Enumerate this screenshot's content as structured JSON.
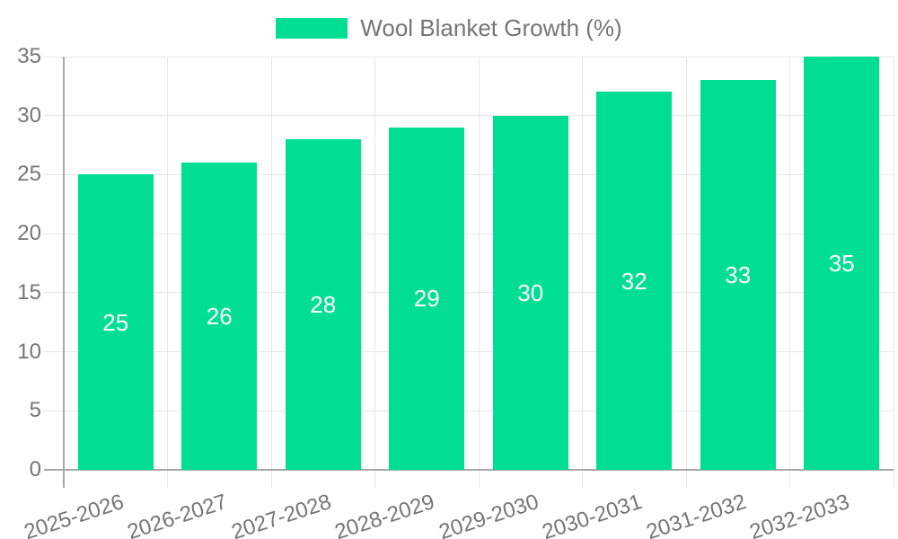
{
  "chart_data": {
    "type": "bar",
    "title": "",
    "legend": {
      "label": "Wool Blanket Growth (%)",
      "position": "top-center"
    },
    "categories": [
      "2025-2026",
      "2026-2027",
      "2027-2028",
      "2028-2029",
      "2029-2030",
      "2030-2031",
      "2031-2032",
      "2032-2033"
    ],
    "series": [
      {
        "name": "Wool Blanket Growth (%)",
        "values": [
          25,
          26,
          28,
          29,
          30,
          32,
          33,
          35
        ]
      }
    ],
    "value_labels": [
      "25",
      "26",
      "28",
      "29",
      "30",
      "32",
      "33",
      "35"
    ],
    "xlabel": "",
    "ylabel": "",
    "ylim": [
      0,
      35
    ],
    "yticks": [
      0,
      5,
      10,
      15,
      20,
      25,
      30,
      35
    ],
    "grid": "on",
    "colors": {
      "bar": "#00de94",
      "value_label": "#ffffff",
      "axis_text": "#757575",
      "gridline": "#e7e7e7",
      "axis_line": "#a8a8a8"
    }
  }
}
